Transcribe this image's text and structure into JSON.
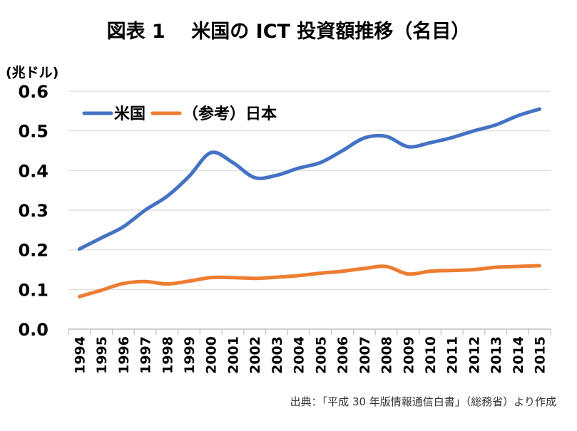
{
  "chart_data": {
    "type": "line",
    "title": "図表 1　 米国の ICT 投資額推移（名目）",
    "ylabel": "(兆ドル)",
    "xlabel": "",
    "source": "出典：「平成 30 年版情報通信白書」（総務省）より作成",
    "x": [
      "1994",
      "1995",
      "1996",
      "1997",
      "1998",
      "1999",
      "2000",
      "2001",
      "2002",
      "2003",
      "2004",
      "2005",
      "2006",
      "2007",
      "2008",
      "2009",
      "2010",
      "2011",
      "2012",
      "2013",
      "2014",
      "2015"
    ],
    "ylim": [
      0,
      0.6
    ],
    "yticks": [
      "0.0",
      "0.1",
      "0.2",
      "0.3",
      "0.4",
      "0.5",
      "0.6"
    ],
    "grid": true,
    "legend_position": "top-left",
    "series": [
      {
        "name": "米国",
        "color": "#4472C4",
        "values": [
          0.202,
          0.23,
          0.258,
          0.3,
          0.335,
          0.385,
          0.445,
          0.42,
          0.382,
          0.388,
          0.406,
          0.42,
          0.45,
          0.482,
          0.486,
          0.46,
          0.47,
          0.483,
          0.5,
          0.515,
          0.538,
          0.555
        ]
      },
      {
        "name": "（参考）日本",
        "color": "#ED7D31",
        "values": [
          0.082,
          0.098,
          0.115,
          0.12,
          0.114,
          0.121,
          0.13,
          0.13,
          0.128,
          0.131,
          0.135,
          0.141,
          0.146,
          0.153,
          0.158,
          0.139,
          0.146,
          0.148,
          0.15,
          0.156,
          0.158,
          0.16
        ]
      }
    ]
  }
}
